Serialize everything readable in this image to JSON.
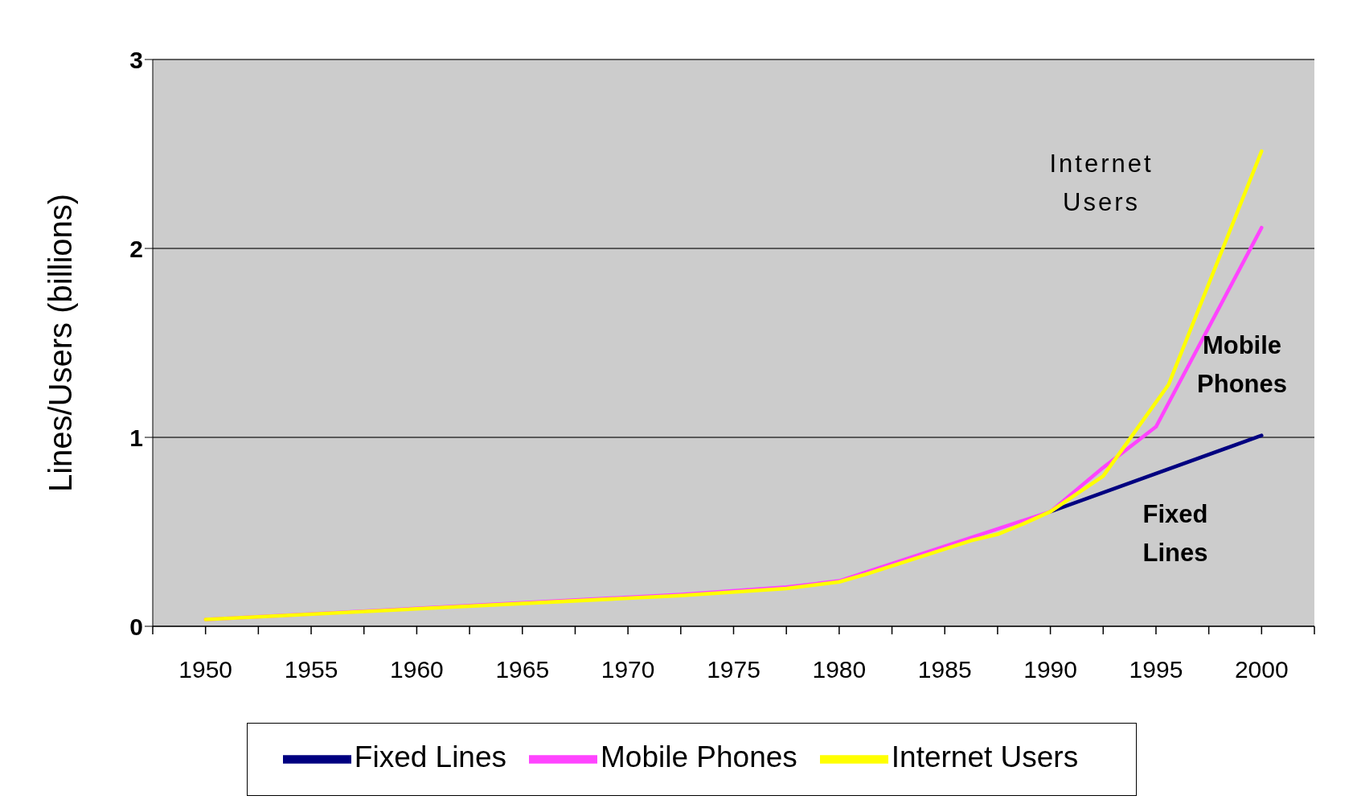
{
  "chart_data": {
    "type": "line",
    "ylabel": "Lines/Users (billions)",
    "xlim": [
      1947.5,
      2002.5
    ],
    "xticks": [
      {
        "value": 1947.5,
        "label": null
      },
      {
        "value": 1950,
        "label": "1950"
      },
      {
        "value": 1952.5,
        "label": null
      },
      {
        "value": 1955,
        "label": "1955"
      },
      {
        "value": 1957.5,
        "label": null
      },
      {
        "value": 1960,
        "label": "1960"
      },
      {
        "value": 1962.5,
        "label": null
      },
      {
        "value": 1965,
        "label": "1965"
      },
      {
        "value": 1967.5,
        "label": null
      },
      {
        "value": 1970,
        "label": "1970"
      },
      {
        "value": 1972.5,
        "label": null
      },
      {
        "value": 1975,
        "label": "1975"
      },
      {
        "value": 1977.5,
        "label": null
      },
      {
        "value": 1980,
        "label": "1980"
      },
      {
        "value": 1982.5,
        "label": null
      },
      {
        "value": 1985,
        "label": "1985"
      },
      {
        "value": 1987.5,
        "label": null
      },
      {
        "value": 1990,
        "label": "1990"
      },
      {
        "value": 1992.5,
        "label": null
      },
      {
        "value": 1995,
        "label": "1995"
      },
      {
        "value": 1997.5,
        "label": null
      },
      {
        "value": 2000,
        "label": "2000"
      },
      {
        "value": 2002.5,
        "label": null
      }
    ],
    "ylim": [
      0,
      3
    ],
    "yticks": [
      0,
      1,
      2,
      3
    ],
    "grid": "y",
    "legend": "bottom",
    "marker": "none",
    "line_style": "solid",
    "series": [
      {
        "name": "Fixed Lines",
        "color": "#000080",
        "x": [
          1990,
          2000
        ],
        "values": [
          0.607,
          1.01
        ]
      },
      {
        "name": "Mobile Phones",
        "color": "#ff44ff",
        "x": [
          1950,
          1972.5,
          1977.5,
          1980,
          1990,
          1992.5,
          1995,
          2000
        ],
        "values": [
          0.036,
          0.168,
          0.207,
          0.24,
          0.607,
          0.84,
          1.056,
          2.11
        ]
      },
      {
        "name": "Internet Users",
        "color": "#ffff00",
        "x": [
          1950,
          1972.5,
          1977.5,
          1980,
          1981.25,
          1986.25,
          1987.5,
          1988.75,
          1990,
          1992.5,
          1995.6,
          2000
        ],
        "values": [
          0.036,
          0.163,
          0.2,
          0.235,
          0.275,
          0.454,
          0.487,
          0.544,
          0.607,
          0.795,
          1.28,
          2.515
        ]
      }
    ],
    "annotations": [
      "Internet\nUsers",
      "Mobile\nPhones",
      "Fixed\nLines"
    ]
  }
}
